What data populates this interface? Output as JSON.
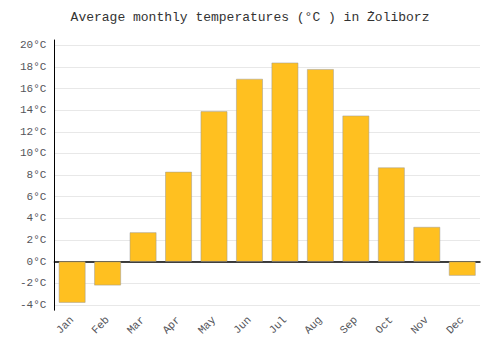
{
  "chart_data": {
    "type": "bar",
    "title": "Average monthly temperatures (°C ) in Żoliborz",
    "categories": [
      "Jan",
      "Feb",
      "Mar",
      "Apr",
      "May",
      "Jun",
      "Jul",
      "Aug",
      "Sep",
      "Oct",
      "Nov",
      "Dec"
    ],
    "values": [
      -3.8,
      -2.2,
      2.7,
      8.3,
      13.9,
      16.9,
      18.4,
      17.8,
      13.5,
      8.7,
      3.2,
      -1.3
    ],
    "color": "#FFC020",
    "ylim": [
      -4.5,
      20.5
    ],
    "yticks": [
      {
        "value": -4,
        "label": "-4°C"
      },
      {
        "value": -2,
        "label": "-2°C"
      },
      {
        "value": 0,
        "label": "0°C"
      },
      {
        "value": 2,
        "label": "2°C"
      },
      {
        "value": 4,
        "label": "4°C"
      },
      {
        "value": 6,
        "label": "6°C"
      },
      {
        "value": 8,
        "label": "8°C"
      },
      {
        "value": 10,
        "label": "10°C"
      },
      {
        "value": 12,
        "label": "12°C"
      },
      {
        "value": 14,
        "label": "14°C"
      },
      {
        "value": 16,
        "label": "16°C"
      },
      {
        "value": 18,
        "label": "18°C"
      },
      {
        "value": 20,
        "label": "20°C"
      }
    ],
    "grid": true
  }
}
